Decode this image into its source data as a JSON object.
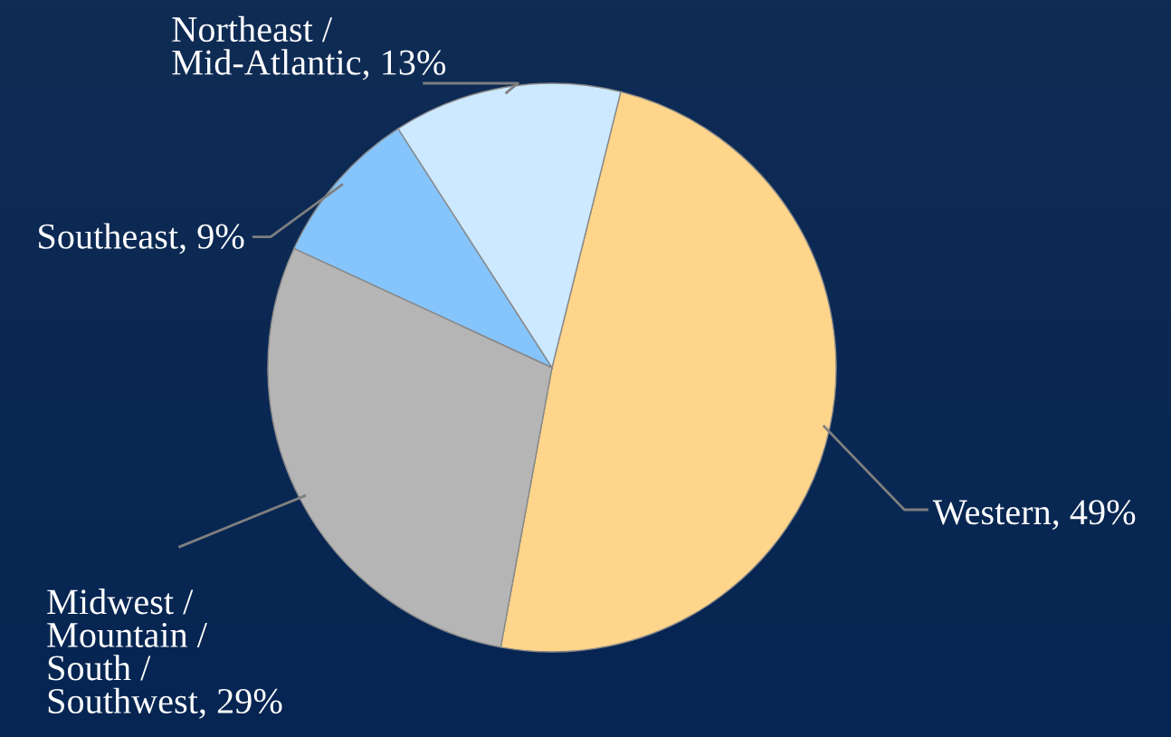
{
  "chart_data": {
    "type": "pie",
    "categories": [
      "Western",
      "Midwest /\nMountain /\nSouth /\nSouthwest",
      "Southeast",
      "Northeast /\nMid-Atlantic"
    ],
    "values": [
      49,
      29,
      9,
      13
    ],
    "value_labels": [
      "49%",
      "29%",
      "9%",
      "13%"
    ],
    "colors": [
      "#fed58b",
      "#b5b5b5",
      "#85c5fb",
      "#cce9ff"
    ]
  }
}
